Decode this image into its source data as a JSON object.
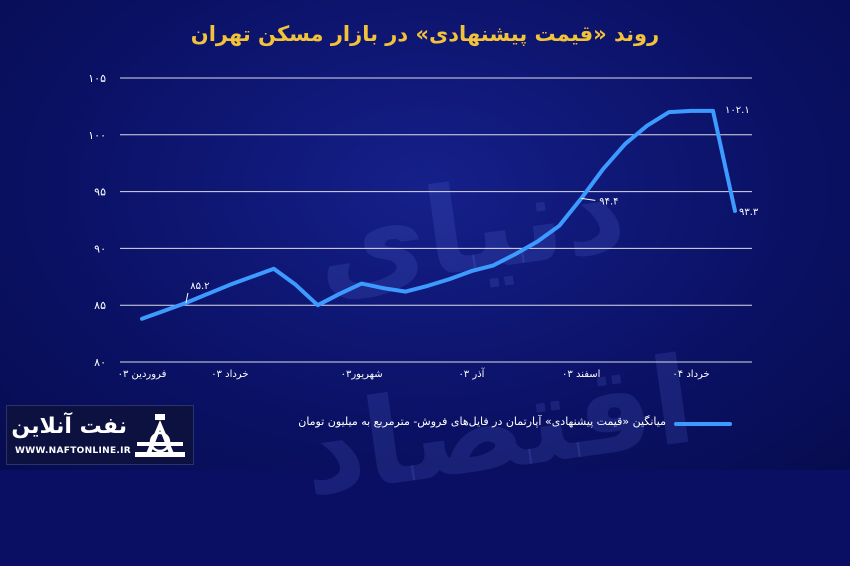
{
  "title": "روند «قیمت پیشنهادی» در بازار مسکن تهران",
  "watermark": "دنیای اقتصاد",
  "colors": {
    "line": "#3d9bff",
    "title": "#f2c23a",
    "text": "#ffffff",
    "grid": "#ffffff"
  },
  "chart_data": {
    "type": "line",
    "title": "روند «قیمت پیشنهادی» در بازار مسکن تهران",
    "xlabel": "",
    "ylabel": "",
    "ylim": [
      80,
      105
    ],
    "yticks": [
      "۸۰",
      "۸۵",
      "۹۰",
      "۹۵",
      "۱۰۰",
      "۱۰۵"
    ],
    "ytick_values": [
      80,
      85,
      90,
      95,
      100,
      105
    ],
    "x_tick_labels": [
      "فروردین ۰۳",
      "خرداد ۰۳",
      "شهریور۰۳",
      "آذر ۰۳",
      "اسفند ۰۳",
      "خرداد ۰۴"
    ],
    "x_tick_index": [
      0,
      4,
      10,
      15,
      20,
      25
    ],
    "grid": true,
    "series": [
      {
        "name": "میانگین «قیمت پیشنهادی» آپارتمان در فایل‌های فروش- مترمربع به میلیون تومان",
        "values": [
          83.8,
          84.5,
          85.2,
          86.0,
          86.8,
          87.5,
          88.2,
          86.8,
          85.0,
          86.0,
          86.9,
          86.5,
          86.2,
          86.7,
          87.3,
          88.0,
          88.5,
          89.5,
          90.6,
          92.0,
          94.4,
          97.0,
          99.2,
          100.8,
          102.0,
          102.1,
          102.1,
          93.3
        ],
        "labels": [
          {
            "index": 2,
            "text": "۸۵.۲"
          },
          {
            "index": 20,
            "text": "۹۴.۴"
          },
          {
            "index": 26,
            "text": "۱۰۲.۱"
          },
          {
            "index": 27,
            "text": "۹۳.۳"
          }
        ]
      }
    ]
  },
  "legend": {
    "label": "میانگین «قیمت پیشنهادی» آپارتمان در فایل‌های فروش- مترمربع به میلیون تومان"
  },
  "logo": {
    "name": "نفت آنلاین",
    "url": "WWW.NAFTONLINE.IR"
  }
}
